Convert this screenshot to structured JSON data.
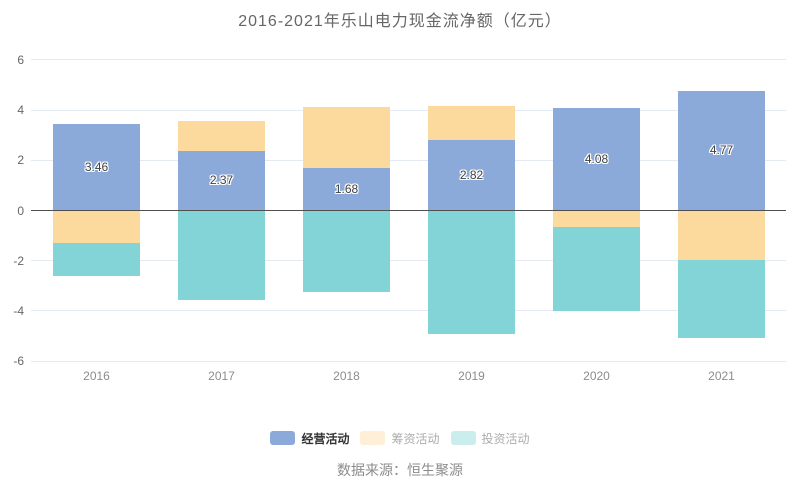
{
  "title": "2016-2021年乐山电力现金流净额（亿元）",
  "source": "数据来源：恒生聚源",
  "palette": {
    "operating": "#8CAAD9",
    "financing": "#FCD99D",
    "investing": "#83D4D6",
    "gridline": "#E4EAF4",
    "zero_line": "#4F4F4F",
    "axis_label": "#8C8C8C"
  },
  "chart_data": {
    "type": "bar",
    "stacked": true,
    "title": "2016-2021年乐山电力现金流净额（亿元）",
    "categories": [
      "2016",
      "2017",
      "2018",
      "2019",
      "2020",
      "2021"
    ],
    "series": [
      {
        "name": "经营活动",
        "key": "operating-cash-flow",
        "color": "#8CAAD9",
        "values": [
          3.46,
          2.37,
          1.68,
          2.82,
          4.08,
          4.77
        ],
        "labels": [
          "3.46",
          "2.37",
          "1.68",
          "2.82",
          "4.08",
          "4.77"
        ]
      },
      {
        "name": "筹资活动",
        "key": "financing-cash-flow",
        "color": "#FCD99D",
        "values": [
          -1.29,
          1.2,
          2.45,
          1.35,
          -0.66,
          -1.98
        ]
      },
      {
        "name": "投资活动",
        "key": "investing-cash-flow",
        "color": "#83D4D6",
        "values": [
          -1.33,
          -3.55,
          -3.25,
          -4.9,
          -3.36,
          -3.12
        ]
      }
    ],
    "xlabel": "",
    "ylabel": "",
    "ylim": [
      -6,
      6
    ],
    "y_ticks": [
      6,
      4,
      2,
      0,
      -2,
      -4,
      -6
    ],
    "grid": true,
    "legend_position": "bottom",
    "legend": [
      {
        "label": "经营活动",
        "emphasis": true
      },
      {
        "label": "筹资活动",
        "emphasis": false
      },
      {
        "label": "投资活动",
        "emphasis": false
      }
    ]
  }
}
